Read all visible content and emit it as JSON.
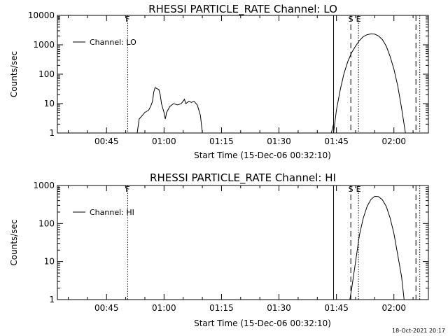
{
  "footer_timestamp": "18-Oct-2021 20:17",
  "chart_data": [
    {
      "type": "line",
      "title": "RHESSI PARTICLE_RATE Channel: LO",
      "ylabel": "Counts/sec",
      "xlabel": "Start Time (15-Dec-06 00:32:10)",
      "y_scale": "log",
      "ylim": [
        1,
        10000
      ],
      "xlim": [
        "00:32:10",
        "02:09:00"
      ],
      "x_ticks": [
        "00:45",
        "01:00",
        "01:15",
        "01:30",
        "01:45",
        "02:00"
      ],
      "y_ticks": [
        "1",
        "10",
        "100",
        "1000",
        "10000"
      ],
      "legend": "Channel: LO",
      "legend_position": "top-left",
      "markers": [
        {
          "label": "F",
          "time": "00:50:30",
          "style": "dotted"
        },
        {
          "label": "",
          "time": "01:44:15",
          "style": "solid"
        },
        {
          "label": "S",
          "time": "01:48:45",
          "style": "dashed"
        },
        {
          "label": "E",
          "time": "01:50:45",
          "style": "dotted"
        },
        {
          "label": "",
          "time": "02:05:45",
          "style": "dashed"
        },
        {
          "label": "",
          "time": "02:06:45",
          "style": "dotted"
        }
      ],
      "series": [
        {
          "segments": [
            [
              [
                "00:53:00",
                1
              ],
              [
                "00:53:30",
                3
              ],
              [
                "00:55:00",
                5
              ],
              [
                "00:56:00",
                6
              ],
              [
                "00:56:30",
                8
              ],
              [
                "00:57:00",
                12
              ],
              [
                "00:57:20",
                25
              ],
              [
                "00:57:40",
                35
              ],
              [
                "00:58:00",
                33
              ],
              [
                "00:58:40",
                30
              ],
              [
                "00:59:00",
                20
              ],
              [
                "00:59:20",
                10
              ],
              [
                "00:59:40",
                7
              ],
              [
                "01:00:00",
                5
              ],
              [
                "01:00:20",
                3
              ],
              [
                "01:00:40",
                5
              ],
              [
                "01:01:30",
                8
              ],
              [
                "01:02:30",
                10
              ],
              [
                "01:03:30",
                9
              ],
              [
                "01:04:30",
                10
              ],
              [
                "01:05:20",
                14
              ],
              [
                "01:05:40",
                10
              ],
              [
                "01:06:30",
                12
              ],
              [
                "01:07:10",
                11
              ],
              [
                "01:07:50",
                12
              ],
              [
                "01:08:40",
                9
              ],
              [
                "01:09:30",
                4
              ],
              [
                "01:10:00",
                1
              ]
            ],
            [
              [
                "01:43:40",
                1
              ],
              [
                "01:44:00",
                1.5
              ],
              [
                "01:44:15",
                2
              ]
            ],
            [
              [
                "01:44:15",
                1
              ],
              [
                "01:45:00",
                6
              ],
              [
                "01:46:00",
                30
              ],
              [
                "01:47:00",
                110
              ],
              [
                "01:48:00",
                280
              ],
              [
                "01:49:00",
                550
              ],
              [
                "01:50:00",
                900
              ],
              [
                "01:51:00",
                1400
              ],
              [
                "01:52:00",
                1900
              ],
              [
                "01:53:00",
                2200
              ],
              [
                "01:54:00",
                2350
              ],
              [
                "01:55:00",
                2300
              ],
              [
                "01:56:00",
                2000
              ],
              [
                "01:57:00",
                1500
              ],
              [
                "01:58:00",
                900
              ],
              [
                "01:59:00",
                400
              ],
              [
                "02:00:00",
                150
              ],
              [
                "02:01:00",
                40
              ],
              [
                "02:02:00",
                7
              ],
              [
                "02:03:00",
                1
              ]
            ]
          ]
        }
      ]
    },
    {
      "type": "line",
      "title": "RHESSI PARTICLE_RATE Channel: HI",
      "ylabel": "Counts/sec",
      "xlabel": "Start Time (15-Dec-06 00:32:10)",
      "y_scale": "log",
      "ylim": [
        1,
        1000
      ],
      "xlim": [
        "00:32:10",
        "02:09:00"
      ],
      "x_ticks": [
        "00:45",
        "01:00",
        "01:15",
        "01:30",
        "01:45",
        "02:00"
      ],
      "y_ticks": [
        "1",
        "10",
        "100",
        "1000"
      ],
      "legend": "Channel: HI",
      "legend_position": "top-left",
      "markers": [
        {
          "label": "F",
          "time": "00:50:30",
          "style": "dotted"
        },
        {
          "label": "",
          "time": "01:44:15",
          "style": "solid"
        },
        {
          "label": "S",
          "time": "01:48:45",
          "style": "dashed"
        },
        {
          "label": "E",
          "time": "01:50:45",
          "style": "dotted"
        },
        {
          "label": "",
          "time": "02:05:45",
          "style": "dashed"
        },
        {
          "label": "",
          "time": "02:06:45",
          "style": "dotted"
        }
      ],
      "series": [
        {
          "segments": [
            [
              [
                "01:48:30",
                1
              ],
              [
                "01:49:00",
                2
              ],
              [
                "01:50:00",
                10
              ],
              [
                "01:51:00",
                50
              ],
              [
                "01:52:00",
                140
              ],
              [
                "01:53:00",
                280
              ],
              [
                "01:54:00",
                430
              ],
              [
                "01:55:00",
                520
              ],
              [
                "01:56:00",
                510
              ],
              [
                "01:57:00",
                420
              ],
              [
                "01:58:00",
                280
              ],
              [
                "01:59:00",
                140
              ],
              [
                "02:00:00",
                55
              ],
              [
                "02:01:00",
                15
              ],
              [
                "02:02:00",
                4
              ],
              [
                "02:02:40",
                1
              ]
            ]
          ]
        }
      ]
    }
  ]
}
